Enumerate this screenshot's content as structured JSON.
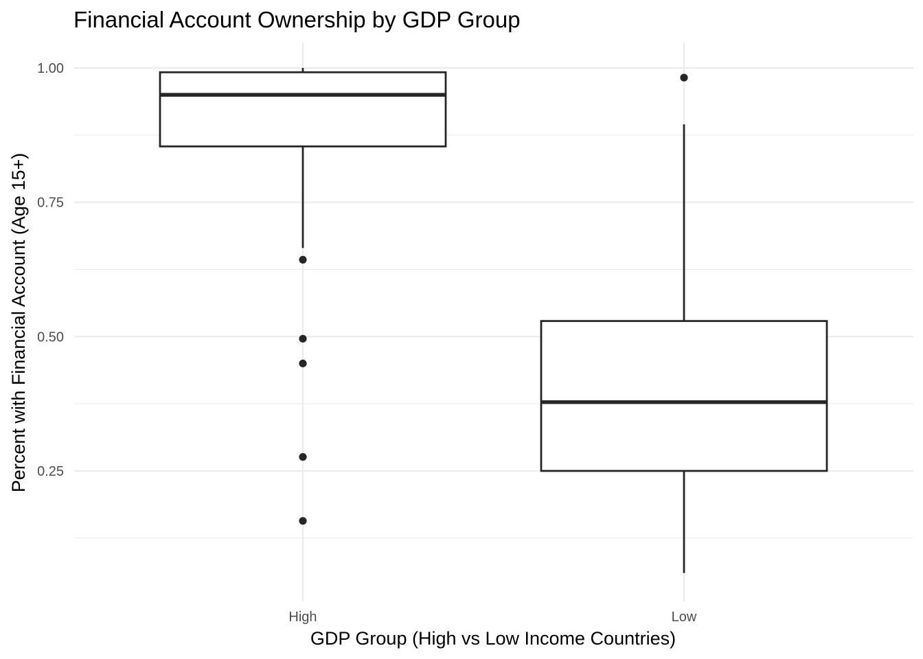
{
  "chart_data": {
    "type": "boxplot",
    "title": "Financial Account Ownership by GDP Group",
    "xlabel": "GDP Group (High vs Low Income Countries)",
    "ylabel": "Percent with Financial Account (Age 15+)",
    "categories": [
      "High",
      "Low"
    ],
    "ylim": [
      0.0,
      1.04
    ],
    "y_ticks": [
      0.25,
      0.5,
      0.75,
      1.0
    ],
    "y_tick_labels": [
      "0.25",
      "0.50",
      "0.75",
      "1.00"
    ],
    "y_minor_ticks": [
      0.125,
      0.375,
      0.625,
      0.875
    ],
    "grid": true,
    "boxes": [
      {
        "category": "High",
        "whisker_low": 0.665,
        "q1": 0.854,
        "median": 0.95,
        "q3": 0.992,
        "whisker_high": 1.0,
        "outliers": [
          0.643,
          0.496,
          0.45,
          0.276,
          0.157
        ]
      },
      {
        "category": "Low",
        "whisker_low": 0.06,
        "q1": 0.25,
        "median": 0.378,
        "q3": 0.529,
        "whisker_high": 0.895,
        "outliers": [
          0.982
        ]
      }
    ],
    "colors": {
      "box_stroke": "#262626",
      "grid": "#ebebeb",
      "tick_text": "#4d4d4d"
    }
  }
}
